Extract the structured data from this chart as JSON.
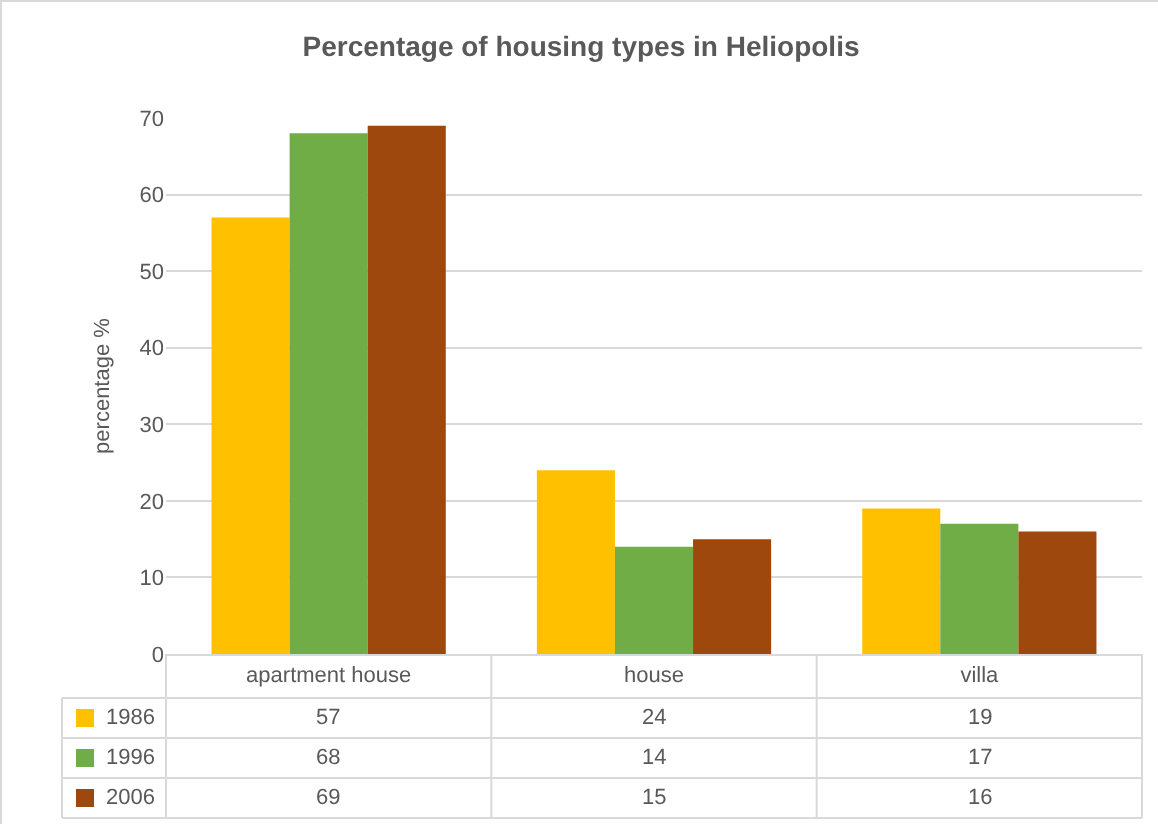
{
  "chart_data": {
    "type": "bar",
    "title": "Percentage of housing types in Heliopolis",
    "ylabel": "percentage %",
    "categories": [
      "apartment house",
      "house",
      "villa"
    ],
    "series": [
      {
        "name": "1986",
        "color": "#ffc000",
        "values": [
          57,
          24,
          19
        ]
      },
      {
        "name": "1996",
        "color": "#70ad47",
        "values": [
          68,
          14,
          17
        ]
      },
      {
        "name": "2006",
        "color": "#9e480e",
        "values": [
          69,
          15,
          16
        ]
      }
    ],
    "ylim": [
      0,
      70
    ],
    "yticks": [
      0,
      10,
      20,
      30,
      40,
      50,
      60,
      70
    ],
    "grid": "y",
    "legend": "bottom",
    "data_labels": true
  }
}
